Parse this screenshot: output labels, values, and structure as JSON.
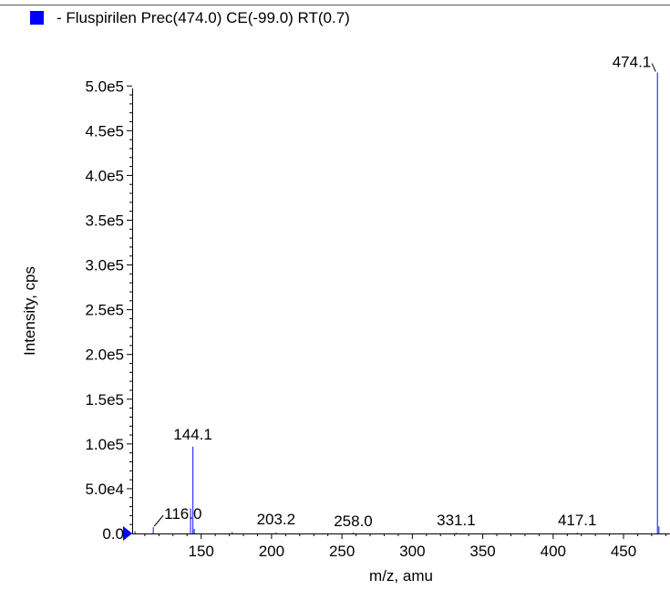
{
  "chart_data": {
    "type": "bar",
    "legend": "- Fluspirilen  Prec(474.0) CE(-99.0) RT(0.7)",
    "legend_color": "#0000ff",
    "series_color": "#3333ff",
    "xlabel": "m/z, amu",
    "ylabel": "Intensity, cps",
    "xlim": [
      101,
      483
    ],
    "ylim": [
      0,
      540000
    ],
    "x_ticks": [
      150,
      200,
      250,
      300,
      350,
      400,
      450
    ],
    "x_tick_labels": [
      "150",
      "200",
      "250",
      "300",
      "350",
      "400",
      "450"
    ],
    "y_ticks": [
      0,
      50000,
      100000,
      150000,
      200000,
      250000,
      300000,
      350000,
      400000,
      450000,
      500000
    ],
    "y_tick_labels": [
      "0.0",
      "5.0e4",
      "1.0e5",
      "1.5e5",
      "2.0e5",
      "2.5e5",
      "3.0e5",
      "3.5e5",
      "4.0e5",
      "4.5e5",
      "5.0e5"
    ],
    "peaks": [
      {
        "mz": 103.0,
        "intensity": 2500
      },
      {
        "mz": 116.0,
        "intensity": 7000
      },
      {
        "mz": 142.5,
        "intensity": 28000
      },
      {
        "mz": 144.1,
        "intensity": 97000
      },
      {
        "mz": 145.1,
        "intensity": 5000
      },
      {
        "mz": 172.0,
        "intensity": 1500
      },
      {
        "mz": 203.2,
        "intensity": 1200
      },
      {
        "mz": 258.0,
        "intensity": 1000
      },
      {
        "mz": 331.1,
        "intensity": 800
      },
      {
        "mz": 417.1,
        "intensity": 900
      },
      {
        "mz": 474.1,
        "intensity": 515000
      },
      {
        "mz": 475.1,
        "intensity": 8000
      }
    ],
    "peak_labels": [
      {
        "text": "474.1",
        "mz": 474.1,
        "intensity": 515000
      },
      {
        "text": "144.1",
        "mz": 144.1,
        "intensity": 97000
      },
      {
        "text": "116.0",
        "mz": 116.0,
        "intensity": 7000
      },
      {
        "text": "203.2",
        "mz": 203.2,
        "intensity": 1200
      },
      {
        "text": "258.0",
        "mz": 258.0,
        "intensity": 1000
      },
      {
        "text": "331.1",
        "mz": 331.1,
        "intensity": 800
      },
      {
        "text": "417.1",
        "mz": 417.1,
        "intensity": 900
      }
    ]
  }
}
